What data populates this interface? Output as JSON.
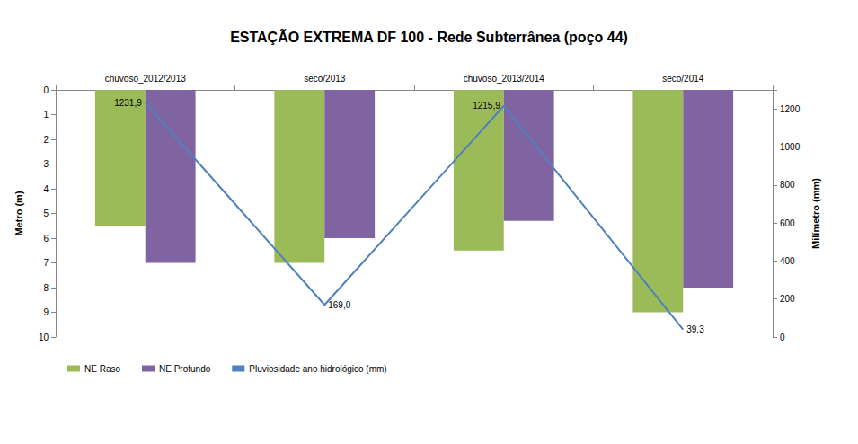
{
  "chart_data": {
    "type": "bar",
    "title": "ESTAÇÃO EXTREMA DF 100 - Rede Subterrânea (poço 44)",
    "y_label": "Metro (m)",
    "y2_label": "Milímetro (mm)",
    "categories": [
      "chuvoso_2012/2013",
      "seco/2013",
      "chuvoso_2013/2014",
      "seco/2014"
    ],
    "series": [
      {
        "name": "NE Raso",
        "type": "bar",
        "color": "#9bbb59",
        "values": [
          5.5,
          7.0,
          6.5,
          9.0
        ]
      },
      {
        "name": "NE Profundo",
        "type": "bar",
        "color": "#8064a2",
        "values": [
          7.0,
          6.0,
          5.3,
          8.0
        ]
      },
      {
        "name": "Pluviosidade ano hidrológico (mm)",
        "type": "line",
        "axis": "y2",
        "color": "#4f81bd",
        "marker": "none",
        "line_style": "solid",
        "data_labels": true,
        "values": [
          1231.9,
          169.0,
          1215.9,
          39.3
        ],
        "value_labels": [
          "1231,9",
          "169,0",
          "1215,9",
          "39,3"
        ]
      }
    ],
    "ylim": [
      0,
      10
    ],
    "yticks": [
      0,
      1,
      2,
      3,
      4,
      5,
      6,
      7,
      8,
      9,
      10
    ],
    "y2lim": [
      0,
      1300
    ],
    "y2ticks": [
      0,
      200,
      400,
      600,
      800,
      1000,
      1200
    ],
    "grid": false,
    "legend": "bottom-left"
  }
}
